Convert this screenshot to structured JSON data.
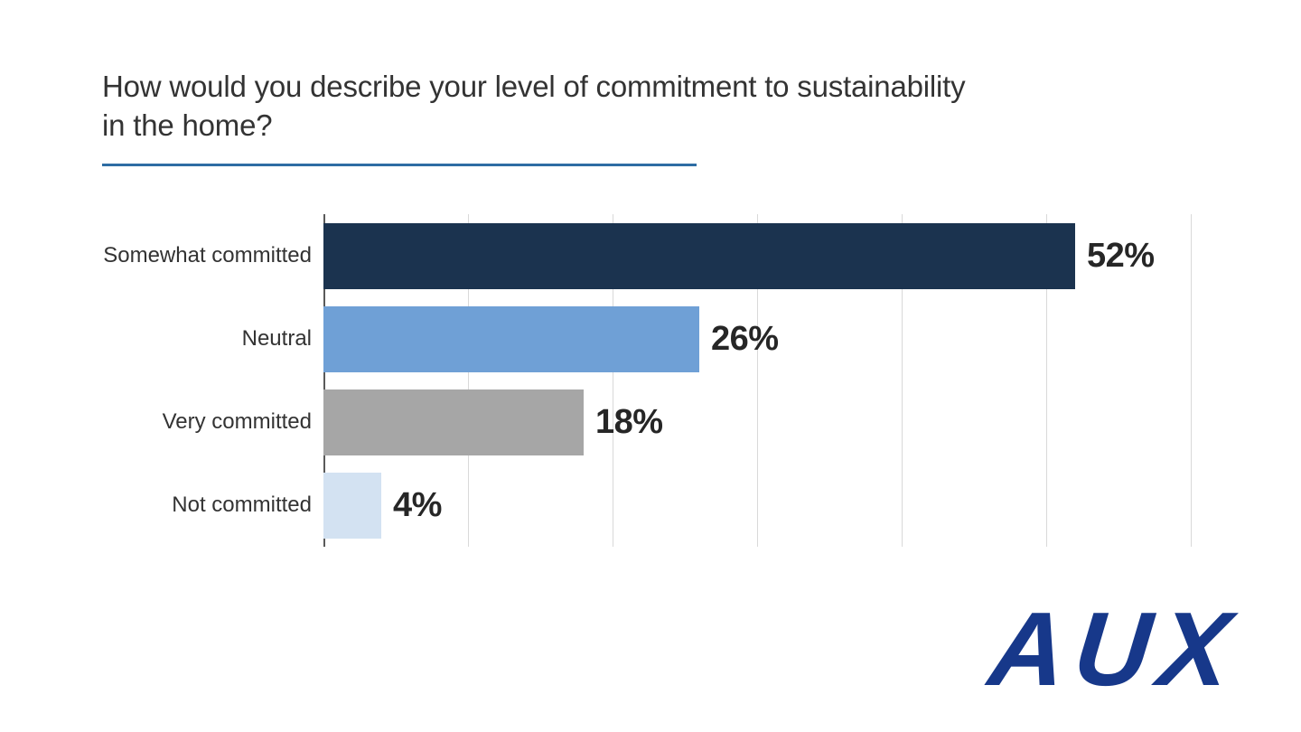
{
  "slide": {
    "title_lines": [
      "How would you describe your level of commitment to sustainability",
      "in the home?"
    ],
    "accent_color": "#2e6da4",
    "logo_text": "AUX",
    "logo_color": "#17388a"
  },
  "chart_data": {
    "type": "bar",
    "orientation": "horizontal",
    "title": "How would you describe your level of commitment to sustainability in the home?",
    "categories": [
      "Somewhat committed",
      "Neutral",
      "Very committed",
      "Not committed"
    ],
    "values": [
      52,
      26,
      18,
      4
    ],
    "value_labels": [
      "52%",
      "26%",
      "18%",
      "4%"
    ],
    "colors": [
      "#1b334f",
      "#6fa0d6",
      "#a6a6a6",
      "#d3e2f2"
    ],
    "xlabel": "",
    "ylabel": "",
    "xlim": [
      0,
      60
    ],
    "tick_interval": 10,
    "tick_labels_visible": false,
    "grid": "vertical",
    "gridline_color": "#d9d9d9",
    "axis_line_color": "#5a5a5a",
    "legend": "none",
    "data_label_color": "#262626"
  }
}
